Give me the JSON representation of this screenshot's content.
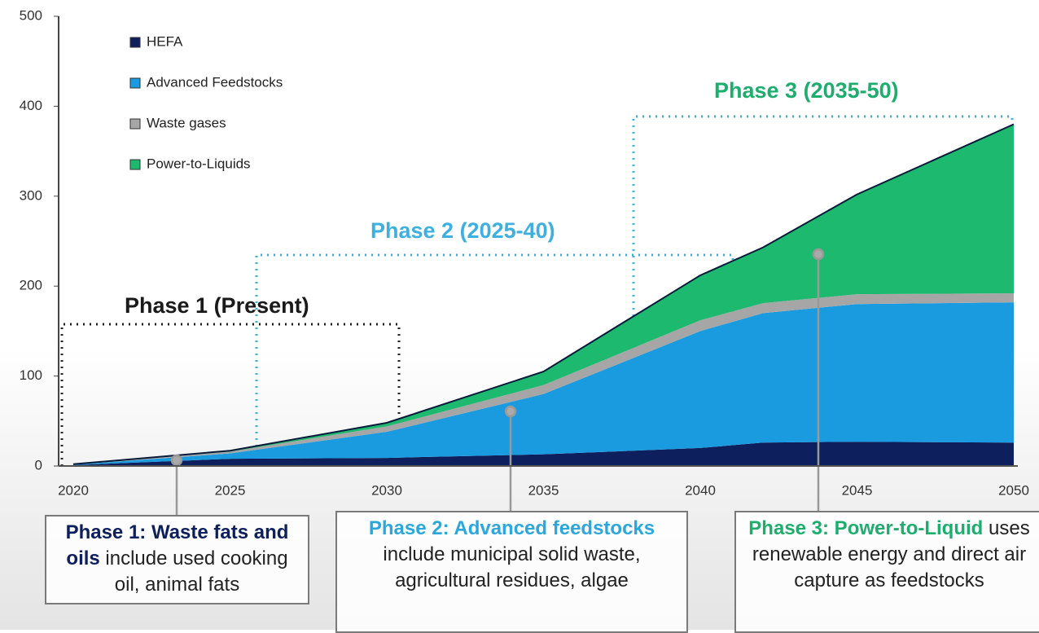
{
  "chart_data": {
    "type": "stacked-area",
    "x": [
      2020,
      2025,
      2030,
      2035,
      2040,
      2042,
      2045,
      2050
    ],
    "xlim": [
      2020,
      2050
    ],
    "xticks": [
      2020,
      2025,
      2030,
      2035,
      2040,
      2045,
      2050
    ],
    "ylim": [
      0,
      500
    ],
    "yticks": [
      0,
      100,
      200,
      300,
      400,
      500
    ],
    "legend": "upper left",
    "series": [
      {
        "name": "HEFA",
        "color": "#0d1f5c",
        "values": [
          1,
          8,
          9,
          13,
          20,
          26,
          27,
          26
        ]
      },
      {
        "name": "Advanced Feedstocks",
        "color": "#1a9be0",
        "values": [
          0.5,
          6,
          29,
          67,
          130,
          144,
          153,
          156
        ]
      },
      {
        "name": "Waste gases",
        "color": "#a6a6a6",
        "values": [
          0.3,
          2,
          6,
          10,
          12,
          11,
          11,
          10
        ]
      },
      {
        "name": "Power-to-Liquids",
        "color": "#1db96e",
        "values": [
          0.2,
          1,
          4,
          15,
          50,
          62,
          111,
          188
        ]
      }
    ],
    "phases": [
      {
        "label": "Phase 1 (Present)",
        "color": "#1a1a1a"
      },
      {
        "label": "Phase 2 (2025-40)",
        "color": "#3db0e0"
      },
      {
        "label": "Phase 3 (2035-50)",
        "color": "#1dae6e"
      }
    ],
    "boxes": [
      {
        "title": "Phase 1: Waste fats and oils",
        "text": "include used cooking oil, animal fats",
        "color": "#0d1f5c"
      },
      {
        "title": "Phase 2: Advanced feedstocks",
        "text": "include municipal solid waste, agricultural residues, algae",
        "color": "#2aa7dc"
      },
      {
        "title": "Phase 3: Power-to-Liquid",
        "text": "uses renewable energy and direct air capture as feedstocks",
        "color": "#1dae6e"
      }
    ]
  }
}
